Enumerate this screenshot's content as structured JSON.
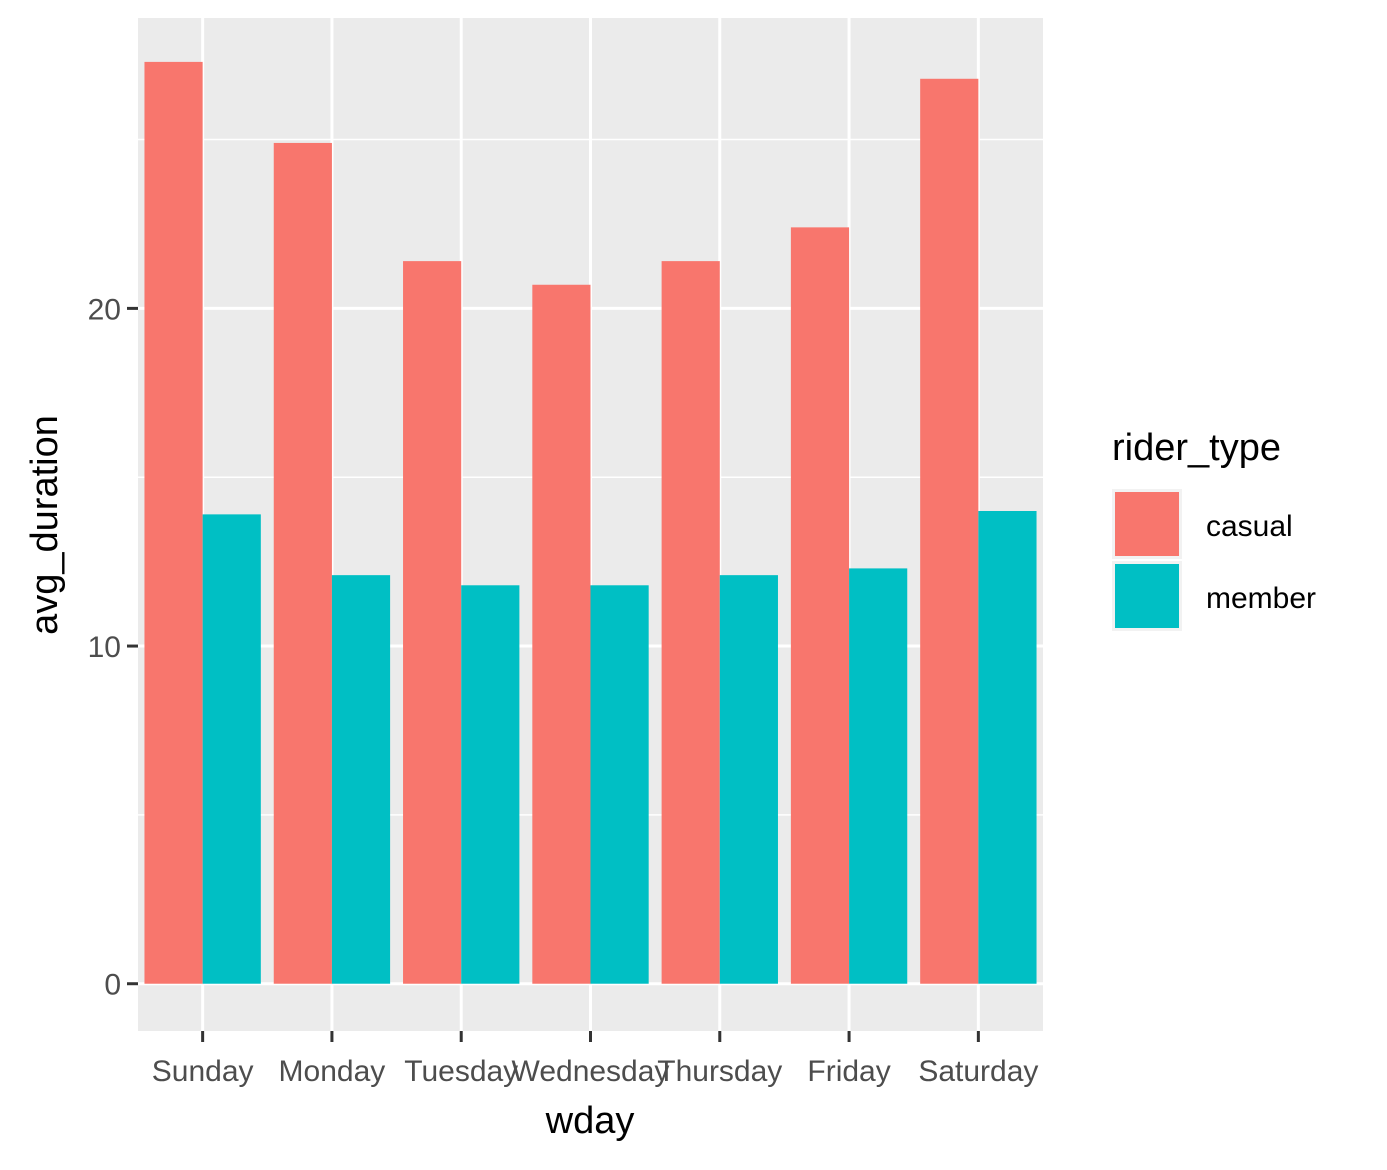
{
  "chart_data": {
    "type": "bar",
    "xlabel": "wday",
    "ylabel": "avg_duration",
    "categories": [
      "Sunday",
      "Monday",
      "Tuesday",
      "Wednesday",
      "Thursday",
      "Friday",
      "Saturday"
    ],
    "series": [
      {
        "name": "casual",
        "color": "#F8766D",
        "values": [
          27.3,
          24.9,
          21.4,
          20.7,
          21.4,
          22.4,
          26.8
        ]
      },
      {
        "name": "member",
        "color": "#00BFC4",
        "values": [
          13.9,
          12.1,
          11.8,
          11.8,
          12.1,
          12.3,
          14.0
        ]
      }
    ],
    "ylim": [
      -1.4,
      28.6
    ],
    "yticks": [
      0,
      10,
      20
    ],
    "grid": true,
    "panel_background": "#EBEBEB",
    "grid_color": "#FFFFFF",
    "legend": {
      "title": "rider_type",
      "placement": "right",
      "items": [
        {
          "label": "casual",
          "color": "#F8766D"
        },
        {
          "label": "member",
          "color": "#00BFC4"
        }
      ]
    }
  }
}
